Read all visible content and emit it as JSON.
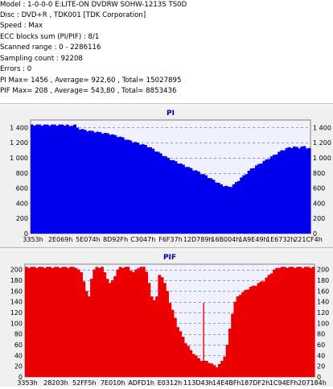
{
  "info": {
    "model": "Model : 1-0-0-0 E:LITE-ON DVDRW SOHW-1213S TS0D",
    "disc": "Disc : DVD+R , TDK001 [TDK Corporation]",
    "speed": "Speed : Max",
    "ecc_blocks": "ECC blocks sum (PI/PIF) : 8/1",
    "scanned_range": "Scanned range : 0 - 2286116",
    "sampling_count": "Sampling count : 92208",
    "errors": "Errors : 0",
    "pi_summary": "PI Max= 1456 , Average= 922,60 , Total= 15027895",
    "pif_summary": "PIF Max= 208 , Average= 543,80 , Total= 8853436"
  },
  "colors": {
    "pi_fill": "#0000ee",
    "pif_fill": "#ee0000",
    "plot_bg": "#f0f0ff",
    "panel_bg": "#f0f0f0",
    "grid": "#9a9aa8",
    "title_text": "#0000a0"
  },
  "chart_data": [
    {
      "type": "area",
      "title": "PI",
      "xlabel": "",
      "ylabel": "",
      "ylim": [
        0,
        1500
      ],
      "y_ticks": [
        0,
        200,
        400,
        600,
        800,
        1000,
        1200,
        1400
      ],
      "y_tick_labels": [
        "0",
        "200",
        "400",
        "600",
        "800",
        "1 000",
        "1 200",
        "1 400"
      ],
      "x_tick_labels": [
        "3353h",
        "2E069h",
        "5E074h",
        "8D92Fh",
        "C3047h",
        "F6F37h",
        "12D789h",
        "16B004h",
        "1A9E49h",
        "1E6732h",
        "221CF4h"
      ],
      "grid": true,
      "series": [
        {
          "values": [
            1440,
            1440,
            1440,
            1440,
            1440,
            1440,
            1440,
            1440,
            1440,
            1440,
            1440,
            1440,
            1440,
            1440,
            1440,
            1420,
            1440,
            1440,
            1400,
            1390,
            1380,
            1370,
            1365,
            1360,
            1355,
            1350,
            1345,
            1340,
            1335,
            1330,
            1325,
            1320,
            1310,
            1300,
            1290,
            1280,
            1270,
            1255,
            1240,
            1230,
            1220,
            1210,
            1200,
            1190,
            1180,
            1170,
            1155,
            1140,
            1120,
            1100,
            1080,
            1060,
            1040,
            1020,
            1000,
            985,
            970,
            955,
            940,
            925,
            910,
            895,
            880,
            865,
            850,
            835,
            820,
            800,
            785,
            770,
            750,
            730,
            710,
            690,
            670,
            650,
            640,
            630,
            620,
            630,
            650,
            680,
            710,
            740,
            770,
            800,
            830,
            860,
            880,
            900,
            920,
            940,
            960,
            980,
            1000,
            1020,
            1040,
            1060,
            1080,
            1100,
            1115,
            1130,
            1140,
            1145,
            1150,
            1145,
            1140,
            1150,
            1155,
            1140,
            1130
          ]
        }
      ]
    },
    {
      "type": "area",
      "title": "PIF",
      "xlabel": "",
      "ylabel": "",
      "ylim": [
        0,
        210
      ],
      "y_ticks": [
        0,
        20,
        40,
        60,
        80,
        100,
        120,
        140,
        160,
        180,
        200
      ],
      "y_tick_labels": [
        "0",
        "20",
        "40",
        "60",
        "80",
        "100",
        "120",
        "140",
        "160",
        "180",
        "200"
      ],
      "x_tick_labels": [
        "3353h",
        "28203h",
        "52FF5h",
        "7E010h",
        "ADFD1h",
        "E0312h",
        "113D43h",
        "14E4BFh",
        "187DF2h",
        "1C94EFh",
        "207184h"
      ],
      "grid": true,
      "series": [
        {
          "values": [
            205,
            205,
            205,
            205,
            205,
            205,
            205,
            205,
            205,
            205,
            205,
            205,
            205,
            205,
            205,
            205,
            205,
            205,
            205,
            205,
            200,
            195,
            180,
            160,
            150,
            185,
            200,
            205,
            205,
            205,
            195,
            185,
            175,
            180,
            190,
            200,
            205,
            205,
            205,
            205,
            200,
            195,
            200,
            205,
            205,
            205,
            198,
            175,
            150,
            145,
            150,
            190,
            188,
            175,
            160,
            140,
            125,
            110,
            95,
            85,
            75,
            65,
            58,
            50,
            45,
            40,
            35,
            32,
            30,
            30,
            28,
            25,
            22,
            20,
            24,
            30,
            40,
            60,
            90,
            120,
            140,
            150,
            155,
            158,
            162,
            165,
            168,
            170,
            172,
            175,
            178,
            180,
            185,
            190,
            195,
            200,
            203,
            205,
            205,
            205,
            205,
            205,
            205,
            205,
            205,
            205,
            205,
            205,
            205,
            205,
            205
          ]
        }
      ],
      "annotations": [
        {
          "x_index": 68,
          "value": 138,
          "label": ""
        }
      ]
    }
  ]
}
